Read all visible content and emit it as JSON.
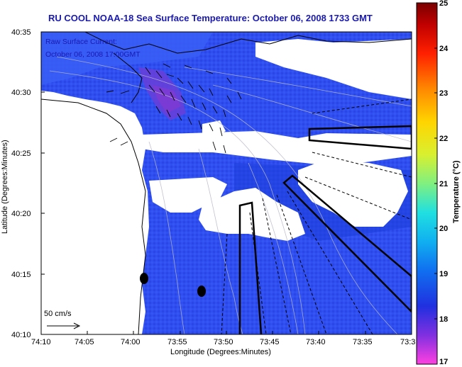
{
  "title": "RU COOL  NOAA-18  Sea Surface Temperature:  October 06, 2008 1733 GMT",
  "overlay": {
    "line1": "Raw Surface Current:",
    "line2": "October 06, 2008 17:00GMT"
  },
  "scale_label": "50 cm/s",
  "x_axis": {
    "label": "Longitude (Degrees:Minutes)",
    "ticks": [
      "74:10",
      "74:05",
      "74:00",
      "73:55",
      "73:50",
      "73:45",
      "73:40",
      "73:35",
      "73:3"
    ]
  },
  "y_axis": {
    "label": "Latitude (Degrees:Minutes)",
    "ticks": [
      "40:35",
      "40:30",
      "40:25",
      "40:20",
      "40:15",
      "40:10"
    ]
  },
  "colorbar": {
    "label": "Temperature (°C)",
    "ticks": [
      "25",
      "24",
      "23",
      "22",
      "21",
      "20",
      "19",
      "18",
      "17"
    ],
    "range": [
      17,
      25
    ]
  },
  "colors": {
    "title": "#1a1ab0",
    "water": "#2f4ff0",
    "water_dark": "#1f3de0",
    "cold_patch": "#7a3bd0",
    "land": "#ffffff"
  }
}
